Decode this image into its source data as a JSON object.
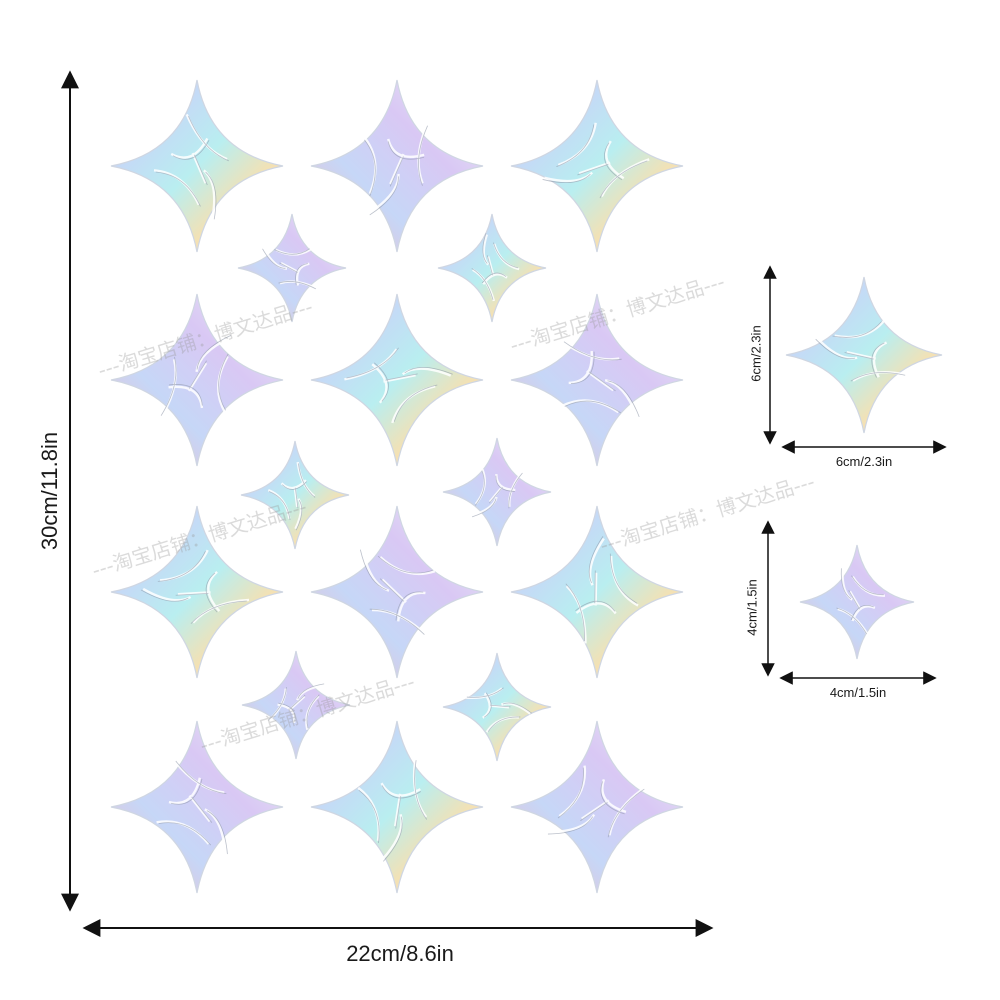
{
  "dimensions": {
    "sheet_height": "30cm/11.8in",
    "sheet_width": "22cm/8.6in",
    "large_height": "6cm/2.3in",
    "large_width": "6cm/2.3in",
    "small_height": "4cm/1.5in",
    "small_width": "4cm/1.5in"
  },
  "watermark": {
    "text": "---淘宝店铺：博文达品---"
  },
  "colors": {
    "background": "#ffffff",
    "arrow": "#111111",
    "label": "#1a1a1a",
    "holo": [
      "#f2b8c8",
      "#c6d7f7",
      "#b9eef0",
      "#f4e1b3",
      "#d9c8f4",
      "#e9eef6"
    ]
  },
  "stickers": {
    "shape": "four-point-star",
    "finish": "holographic-iridescent",
    "large_count_on_sheet": 12,
    "small_count_on_sheet": 6
  }
}
